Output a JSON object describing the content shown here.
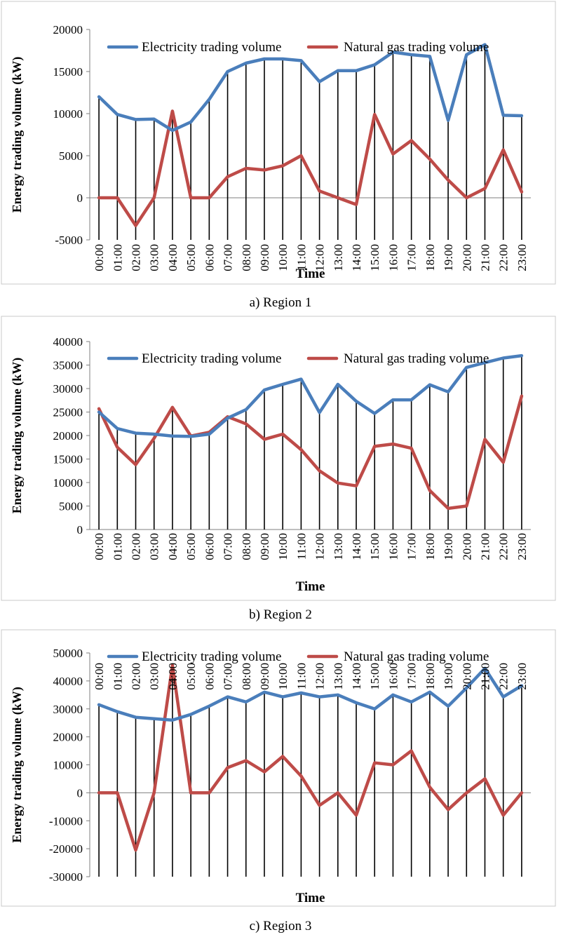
{
  "chart_data": [
    {
      "type": "line",
      "caption": "a) Region 1",
      "xlabel": "Time",
      "ylabel": "Energy trading volume (kW)",
      "ylim": [
        -5000,
        20000
      ],
      "yticks": [
        -5000,
        0,
        5000,
        10000,
        15000,
        20000
      ],
      "yticklabels": [
        "-5000",
        "0",
        "5000",
        "10000",
        "15000",
        "20000"
      ],
      "categories": [
        "00:00",
        "01:00",
        "02:00",
        "03:00",
        "04:00",
        "05:00",
        "06:00",
        "07:00",
        "08:00",
        "09:00",
        "10:00",
        "11:00",
        "12:00",
        "13:00",
        "14:00",
        "15:00",
        "16:00",
        "17:00",
        "18:00",
        "19:00",
        "20:00",
        "21:00",
        "22:00",
        "23:00"
      ],
      "series": [
        {
          "name": "Electricity trading volume",
          "color": "#4a7ebb",
          "values": [
            12000,
            9900,
            9300,
            9350,
            8000,
            9000,
            11700,
            15000,
            16000,
            16500,
            16500,
            16300,
            13800,
            15100,
            15100,
            15800,
            17300,
            17000,
            16800,
            9200,
            17000,
            18200,
            9800,
            9750
          ]
        },
        {
          "name": "Natural gas trading volume",
          "color": "#be4b48",
          "values": [
            0,
            0,
            -3300,
            0,
            10300,
            0,
            0,
            2500,
            3500,
            3300,
            3800,
            5000,
            800,
            0,
            -800,
            9900,
            5200,
            6800,
            4600,
            2100,
            0,
            1100,
            5700,
            700
          ]
        }
      ],
      "legend": "top"
    },
    {
      "type": "line",
      "caption": "b) Region 2",
      "xlabel": "Time",
      "ylabel": "Energy trading volume (kW)",
      "ylim": [
        0,
        40000
      ],
      "yticks": [
        0,
        5000,
        10000,
        15000,
        20000,
        25000,
        30000,
        35000,
        40000
      ],
      "yticklabels": [
        "0",
        "5000",
        "10000",
        "15000",
        "20000",
        "25000",
        "30000",
        "35000",
        "40000"
      ],
      "categories": [
        "00:00",
        "01:00",
        "02:00",
        "03:00",
        "04:00",
        "05:00",
        "06:00",
        "07:00",
        "08:00",
        "09:00",
        "10:00",
        "11:00",
        "12:00",
        "13:00",
        "14:00",
        "15:00",
        "16:00",
        "17:00",
        "18:00",
        "19:00",
        "20:00",
        "21:00",
        "22:00",
        "23:00"
      ],
      "series": [
        {
          "name": "Electricity trading volume",
          "color": "#4a7ebb",
          "values": [
            25000,
            21500,
            20500,
            20300,
            19900,
            19800,
            20300,
            23700,
            25500,
            29700,
            30900,
            32000,
            24900,
            30900,
            27300,
            24700,
            27600,
            27600,
            30800,
            29300,
            34500,
            35500,
            36500,
            37000
          ]
        },
        {
          "name": "Natural gas trading volume",
          "color": "#be4b48",
          "values": [
            25700,
            17500,
            13800,
            19400,
            26000,
            19900,
            20700,
            24000,
            22500,
            19200,
            20300,
            17000,
            12500,
            9900,
            9300,
            17700,
            18200,
            17300,
            8300,
            4500,
            5000,
            19200,
            14300,
            28400
          ]
        }
      ],
      "legend": "top"
    },
    {
      "type": "line",
      "caption": "c) Region 3",
      "xlabel": "Time",
      "ylabel": "Energy trading volume (kW)",
      "ylim": [
        -30000,
        50000
      ],
      "yticks": [
        -30000,
        -20000,
        -10000,
        0,
        10000,
        20000,
        30000,
        40000,
        50000
      ],
      "yticklabels": [
        "-30000",
        "-20000",
        "-10000",
        "0",
        "10000",
        "20000",
        "30000",
        "40000",
        "50000"
      ],
      "categories": [
        "00:00",
        "01:00",
        "02:00",
        "03:00",
        "04:00",
        "05:00",
        "06:00",
        "07:00",
        "08:00",
        "09:00",
        "10:00",
        "11:00",
        "12:00",
        "13:00",
        "14:00",
        "15:00",
        "16:00",
        "17:00",
        "18:00",
        "19:00",
        "20:00",
        "21:00",
        "22:00",
        "23:00"
      ],
      "series": [
        {
          "name": "Electricity trading volume",
          "color": "#4a7ebb",
          "values": [
            31500,
            29000,
            27000,
            26500,
            26000,
            28000,
            31000,
            34300,
            32500,
            36000,
            34300,
            35700,
            34300,
            35000,
            32200,
            30000,
            35000,
            32500,
            36000,
            31000,
            37500,
            44500,
            34300,
            38300
          ]
        },
        {
          "name": "Natural gas trading volume",
          "color": "#be4b48",
          "values": [
            0,
            0,
            -20500,
            0,
            45500,
            0,
            0,
            9000,
            11500,
            7500,
            13000,
            6000,
            -4500,
            0,
            -8000,
            10700,
            10000,
            15000,
            2000,
            -6000,
            0,
            5000,
            -8000,
            0
          ]
        }
      ],
      "legend": "top"
    }
  ]
}
